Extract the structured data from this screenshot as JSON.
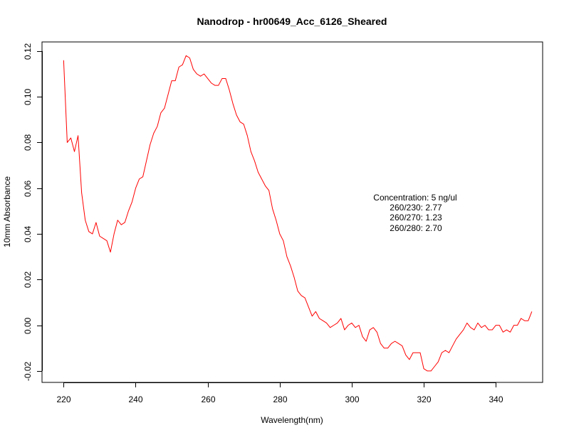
{
  "chart_data": {
    "type": "line",
    "title": "Nanodrop - hr00649_Acc_6126_Sheared",
    "xlabel": "Wavelength(nm)",
    "ylabel": "10mm Absorbance",
    "xlim": [
      214,
      353
    ],
    "ylim": [
      -0.025,
      0.124
    ],
    "x_ticks": [
      220,
      240,
      260,
      280,
      300,
      320,
      340
    ],
    "y_ticks": [
      -0.02,
      0.0,
      0.02,
      0.04,
      0.06,
      0.08,
      0.1,
      0.12
    ],
    "x_tick_labels": [
      "220",
      "240",
      "260",
      "280",
      "300",
      "320",
      "340"
    ],
    "y_tick_labels": [
      "-0.02",
      "0.00",
      "0.02",
      "0.04",
      "0.06",
      "0.08",
      "0.10",
      "0.12"
    ],
    "grid": false,
    "series_color": "#ff0000",
    "series": [
      {
        "x": [
          220,
          221,
          222,
          223,
          224,
          225,
          226,
          227,
          228,
          229,
          230,
          231,
          232,
          233,
          234,
          235,
          236,
          237,
          238,
          239,
          240,
          241,
          242,
          243,
          244,
          245,
          246,
          247,
          248,
          249,
          250,
          251,
          252,
          253,
          254,
          255,
          256,
          257,
          258,
          259,
          260,
          261,
          262,
          263,
          264,
          265,
          266,
          267,
          268,
          269,
          270,
          271,
          272,
          273,
          274,
          275,
          276,
          277,
          278,
          279,
          280,
          281,
          282,
          283,
          284,
          285,
          286,
          287,
          288,
          289,
          290,
          291,
          292,
          293,
          294,
          295,
          296,
          297,
          298,
          299,
          300,
          301,
          302,
          303,
          304,
          305,
          306,
          307,
          308,
          309,
          310,
          311,
          312,
          313,
          314,
          315,
          316,
          317,
          318,
          319,
          320,
          321,
          322,
          323,
          324,
          325,
          326,
          327,
          328,
          329,
          330,
          331,
          332,
          333,
          334,
          335,
          336,
          337,
          338,
          339,
          340,
          341,
          342,
          343,
          344,
          345,
          346,
          347,
          348,
          349,
          350
        ],
        "y": [
          0.116,
          0.08,
          0.082,
          0.076,
          0.083,
          0.058,
          0.046,
          0.041,
          0.04,
          0.045,
          0.039,
          0.038,
          0.037,
          0.032,
          0.04,
          0.046,
          0.044,
          0.045,
          0.05,
          0.054,
          0.06,
          0.064,
          0.065,
          0.072,
          0.079,
          0.084,
          0.087,
          0.093,
          0.095,
          0.101,
          0.107,
          0.107,
          0.113,
          0.114,
          0.118,
          0.117,
          0.112,
          0.11,
          0.109,
          0.11,
          0.108,
          0.106,
          0.105,
          0.105,
          0.108,
          0.108,
          0.103,
          0.097,
          0.092,
          0.089,
          0.088,
          0.083,
          0.076,
          0.072,
          0.067,
          0.064,
          0.061,
          0.059,
          0.051,
          0.046,
          0.04,
          0.037,
          0.03,
          0.026,
          0.021,
          0.015,
          0.013,
          0.012,
          0.008,
          0.004,
          0.006,
          0.003,
          0.002,
          0.001,
          -0.001,
          0.0,
          0.001,
          0.003,
          -0.002,
          0.0,
          0.001,
          -0.001,
          0.0,
          -0.005,
          -0.007,
          -0.002,
          -0.001,
          -0.003,
          -0.008,
          -0.01,
          -0.01,
          -0.008,
          -0.007,
          -0.008,
          -0.009,
          -0.013,
          -0.015,
          -0.012,
          -0.012,
          -0.012,
          -0.019,
          -0.02,
          -0.02,
          -0.018,
          -0.016,
          -0.012,
          -0.011,
          -0.012,
          -0.009,
          -0.006,
          -0.004,
          -0.002,
          0.001,
          -0.001,
          -0.002,
          0.001,
          -0.001,
          0.0,
          -0.002,
          -0.002,
          0.0,
          0.0,
          -0.003,
          -0.002,
          -0.003,
          0.0,
          0.0,
          0.003,
          0.002,
          0.002,
          0.006
        ]
      }
    ],
    "annotations": [
      "Concentration: 5 ng/ul",
      "260/230: 2.77",
      "260/270: 1.23",
      "260/280: 2.70"
    ]
  }
}
